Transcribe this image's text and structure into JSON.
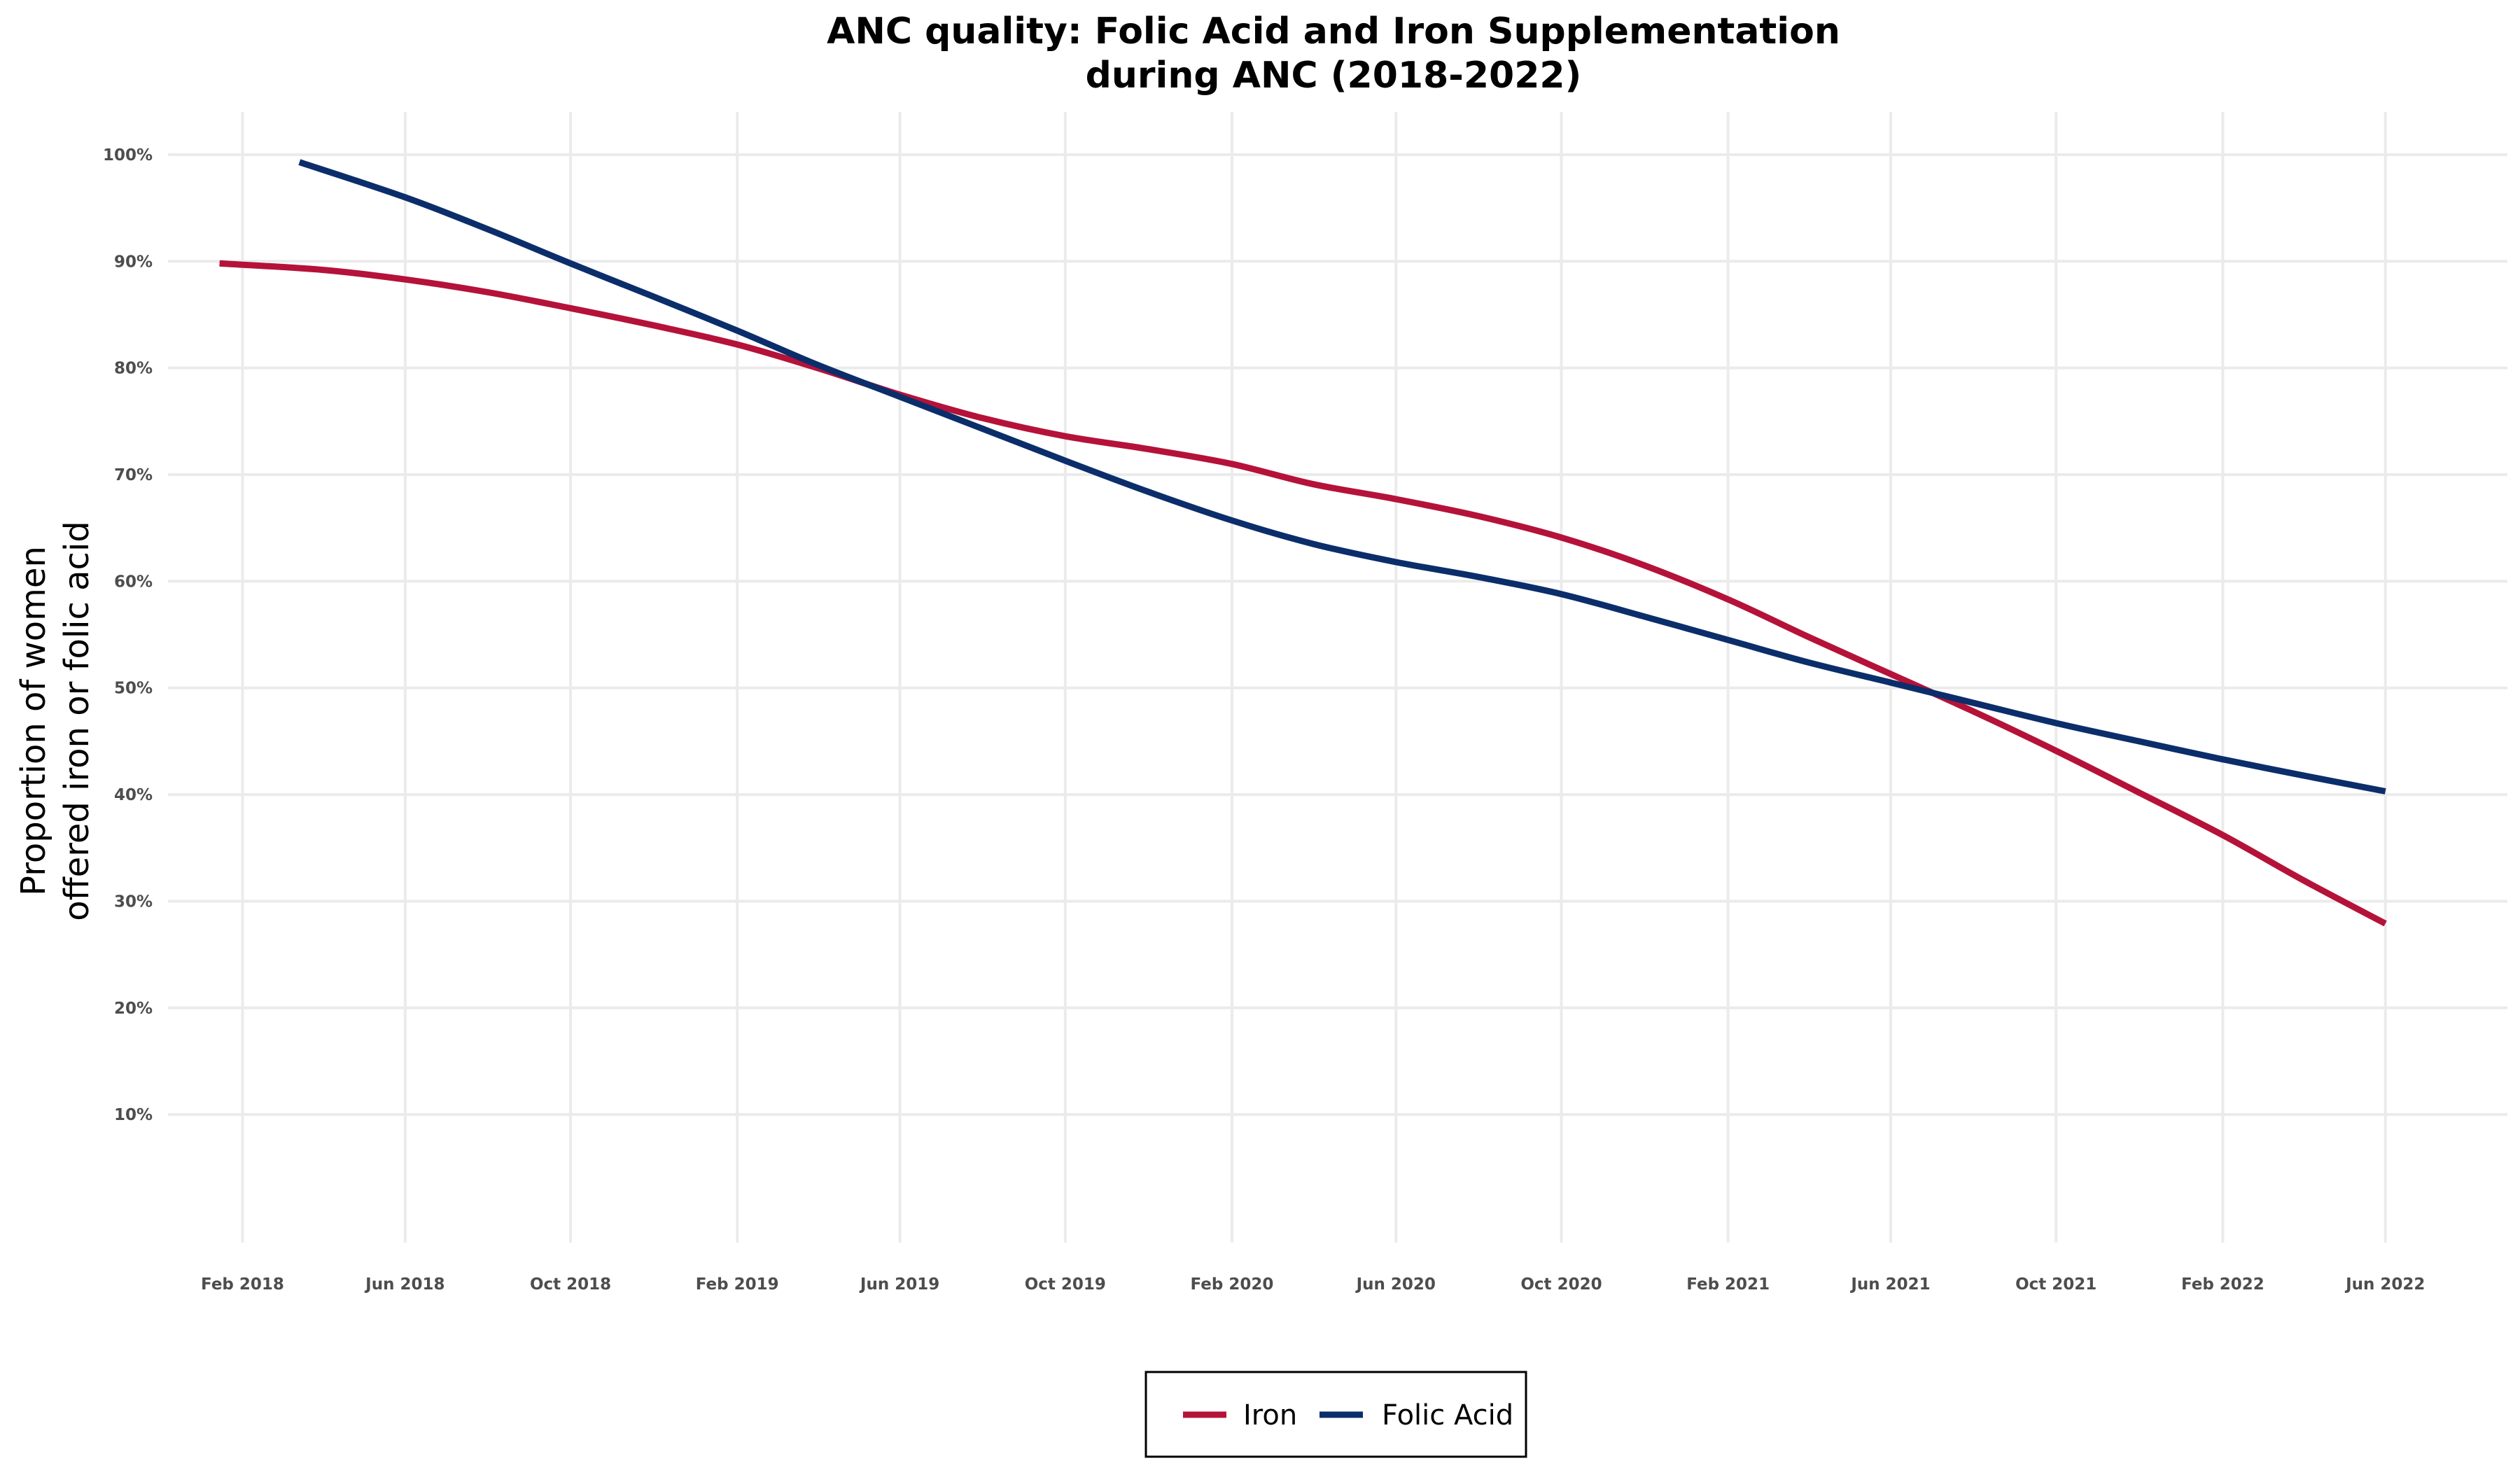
{
  "chart_data": {
    "type": "line",
    "title_lines": [
      "ANC quality: Folic Acid and Iron Supplementation",
      "during ANC (2018-2022)"
    ],
    "xlabel": "",
    "ylabel_lines": [
      "Proportion of women",
      "offered iron or folic acid"
    ],
    "x_tick_labels": [
      "Feb 2018",
      "Jun 2018",
      "Oct 2018",
      "Feb 2019",
      "Jun 2019",
      "Oct 2019",
      "Feb 2020",
      "Jun 2020",
      "Oct 2020",
      "Feb 2021",
      "Jun 2021",
      "Oct 2021",
      "Feb 2022",
      "Jun 2022"
    ],
    "y_tick_labels": [
      "10%",
      "20%",
      "30%",
      "40%",
      "50%",
      "60%",
      "70%",
      "80%",
      "90%",
      "100%"
    ],
    "y_ticks": [
      10,
      20,
      30,
      40,
      50,
      60,
      70,
      80,
      90,
      100
    ],
    "ylim": [
      -2,
      104
    ],
    "xlim": [
      "2017-12-08",
      "2022-08-30"
    ],
    "grid": true,
    "legend_position": "bottom",
    "series": [
      {
        "name": "Iron",
        "color": "#b5123a",
        "x": [
          "2018-01-15",
          "2018-04-01",
          "2018-06-01",
          "2018-08-01",
          "2018-10-01",
          "2018-12-01",
          "2019-02-01",
          "2019-04-01",
          "2019-06-01",
          "2019-08-01",
          "2019-10-01",
          "2019-12-01",
          "2020-02-01",
          "2020-04-01",
          "2020-06-01",
          "2020-08-01",
          "2020-10-01",
          "2020-12-01",
          "2021-02-01",
          "2021-04-01",
          "2021-06-01",
          "2021-08-01",
          "2021-10-01",
          "2021-12-01",
          "2022-02-01",
          "2022-04-01",
          "2022-06-01"
        ],
        "values": [
          89.8,
          89.2,
          88.3,
          87.1,
          85.6,
          84.0,
          82.2,
          80.0,
          77.5,
          75.3,
          73.6,
          72.4,
          71.0,
          69.1,
          67.7,
          66.1,
          64.1,
          61.5,
          58.3,
          54.8,
          51.3,
          47.8,
          44.1,
          40.2,
          36.2,
          32.0,
          27.9
        ]
      },
      {
        "name": "Folic Acid",
        "color": "#0b2e6b",
        "x": [
          "2018-03-15",
          "2018-06-01",
          "2018-08-01",
          "2018-10-01",
          "2018-12-01",
          "2019-02-01",
          "2019-04-01",
          "2019-06-01",
          "2019-08-01",
          "2019-10-01",
          "2019-12-01",
          "2020-02-01",
          "2020-04-01",
          "2020-06-01",
          "2020-08-01",
          "2020-10-01",
          "2020-12-01",
          "2021-02-01",
          "2021-04-01",
          "2021-06-01",
          "2021-08-01",
          "2021-10-01",
          "2021-12-01",
          "2022-02-01",
          "2022-04-01",
          "2022-06-01"
        ],
        "values": [
          99.3,
          96.0,
          93.0,
          89.8,
          86.7,
          83.5,
          80.3,
          77.3,
          74.3,
          71.3,
          68.4,
          65.7,
          63.5,
          61.8,
          60.4,
          58.8,
          56.7,
          54.5,
          52.4,
          50.5,
          48.6,
          46.7,
          45.0,
          43.3,
          41.8,
          40.3
        ]
      }
    ]
  }
}
